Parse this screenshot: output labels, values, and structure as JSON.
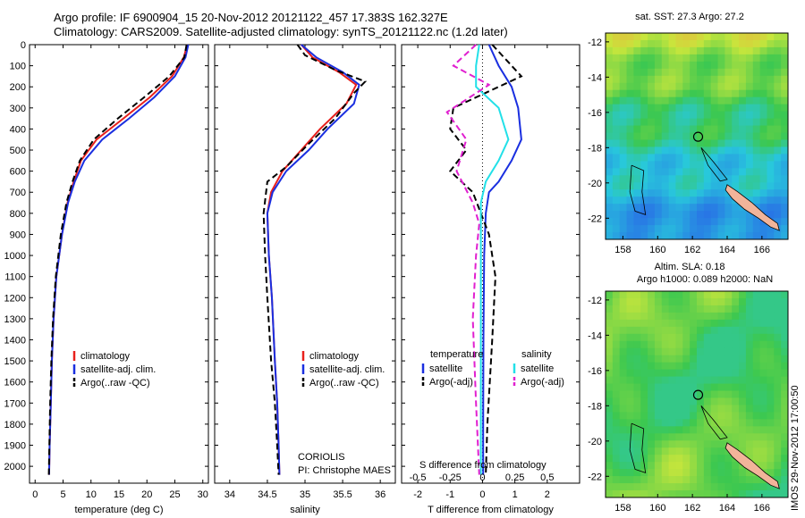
{
  "title_line1": "Argo profile: IF 6900904_15 20-Nov-2012 20121122_457 17.383S 162.327E",
  "title_line2": "Climatology: CARS2009. Satellite-adjusted climatology: synTS_20121122.nc (1.2d later)",
  "colors": {
    "red": "#e8201c",
    "blue": "#1a2fe0",
    "black": "#000000",
    "magenta": "#e020d0",
    "cyan": "#22e0e8"
  },
  "chart_data": [
    {
      "type": "line",
      "panel": "temperature",
      "xlabel": "temperature (deg C)",
      "ylabel": "",
      "xlim": [
        -1,
        31
      ],
      "ylim": [
        2080,
        0
      ],
      "xticks": [
        0,
        5,
        10,
        15,
        20,
        25,
        30
      ],
      "yticks": [
        0,
        100,
        200,
        300,
        400,
        500,
        600,
        700,
        800,
        900,
        1000,
        1100,
        1200,
        1300,
        1400,
        1500,
        1600,
        1700,
        1800,
        1900,
        2000
      ],
      "legend": {
        "position": "bottom-center",
        "entries": [
          "climatology",
          "satellite-adj. clim.",
          "Argo(..raw -QC)"
        ]
      },
      "series": [
        {
          "name": "climatology",
          "style": "solid",
          "color": "red",
          "x": [
            27.2,
            26.6,
            24.5,
            20.5,
            15.8,
            11.0,
            8.2,
            6.9,
            5.8,
            4.8,
            3.8,
            3.3,
            3.0,
            2.8,
            2.6,
            2.5
          ],
          "y": [
            0,
            60,
            150,
            250,
            350,
            450,
            550,
            650,
            750,
            900,
            1100,
            1300,
            1500,
            1700,
            1900,
            2040
          ]
        },
        {
          "name": "satellite-adj. clim.",
          "style": "solid",
          "color": "blue",
          "x": [
            27.4,
            26.9,
            25.0,
            21.3,
            16.8,
            12.0,
            8.8,
            7.1,
            5.9,
            4.8,
            3.8,
            3.3,
            3.0,
            2.8,
            2.6,
            2.5
          ],
          "y": [
            0,
            60,
            150,
            250,
            350,
            450,
            550,
            650,
            750,
            900,
            1100,
            1300,
            1500,
            1700,
            1900,
            2040
          ]
        },
        {
          "name": "Argo(..raw -QC)",
          "style": "dashed",
          "color": "black",
          "x": [
            27.1,
            26.7,
            24.0,
            19.5,
            14.8,
            10.5,
            8.0,
            6.7,
            5.6,
            4.6,
            3.7,
            3.2,
            2.9,
            2.7,
            2.55,
            2.45
          ],
          "y": [
            0,
            60,
            150,
            250,
            350,
            450,
            550,
            650,
            750,
            900,
            1100,
            1300,
            1500,
            1700,
            1900,
            2040
          ]
        }
      ]
    },
    {
      "type": "line",
      "panel": "salinity",
      "xlabel": "salinity",
      "xlim": [
        33.8,
        36.2
      ],
      "ylim": [
        2080,
        0
      ],
      "xticks": [
        34,
        34.5,
        35,
        35.5,
        36
      ],
      "xticklabels": [
        "34",
        "34.5",
        "35",
        "35.5",
        "36"
      ],
      "legend": {
        "position": "bottom-center",
        "entries": [
          "climatology",
          "satellite-adj. clim.",
          "Argo(..raw -QC)"
        ]
      },
      "annotation": [
        "CORIOLIS",
        "PI: Christophe MAES"
      ],
      "series": [
        {
          "name": "climatology",
          "style": "solid",
          "color": "red",
          "x": [
            34.95,
            35.1,
            35.45,
            35.68,
            35.55,
            35.2,
            34.95,
            34.7,
            34.55,
            34.5,
            34.52,
            34.56,
            34.6,
            34.63,
            34.65,
            34.66
          ],
          "y": [
            0,
            60,
            130,
            190,
            280,
            400,
            500,
            600,
            700,
            800,
            1000,
            1200,
            1500,
            1700,
            1900,
            2040
          ]
        },
        {
          "name": "satellite-adj. clim.",
          "style": "solid",
          "color": "blue",
          "x": [
            34.95,
            35.15,
            35.5,
            35.72,
            35.65,
            35.3,
            35.05,
            34.75,
            34.57,
            34.5,
            34.52,
            34.56,
            34.6,
            34.63,
            34.65,
            34.66
          ],
          "y": [
            0,
            60,
            130,
            190,
            280,
            400,
            500,
            600,
            700,
            800,
            1000,
            1200,
            1500,
            1700,
            1900,
            2040
          ]
        },
        {
          "name": "Argo(..raw -QC)",
          "style": "dashed",
          "color": "black",
          "x": [
            34.9,
            35.0,
            35.4,
            35.8,
            35.65,
            35.4,
            35.05,
            34.75,
            34.5,
            34.45,
            34.47,
            34.5,
            34.55,
            34.6,
            34.63,
            34.65
          ],
          "y": [
            0,
            50,
            120,
            175,
            230,
            350,
            470,
            580,
            650,
            800,
            1000,
            1200,
            1500,
            1700,
            1900,
            2040
          ]
        }
      ]
    },
    {
      "type": "line",
      "panel": "difference",
      "xlabel": "T difference from climatology",
      "xlabel2": "S difference from climatology",
      "xlim": [
        -2.5,
        3
      ],
      "ylim": [
        2080,
        0
      ],
      "xticks": [
        -2,
        -1,
        0,
        1,
        2
      ],
      "sxticks": [
        -0.5,
        -0.25,
        0,
        0.25,
        0.5
      ],
      "sxticklabels": [
        "-0.5",
        "-0.25",
        "0",
        "0.25",
        "0.5"
      ],
      "legend_temperature": {
        "title": "temperature",
        "entries": [
          "satellite",
          "Argo(-adj)"
        ]
      },
      "legend_salinity": {
        "title": "salinity",
        "entries": [
          "satellite",
          "Argo(-adj)"
        ]
      },
      "series": [
        {
          "name": "satellite",
          "group": "temperature",
          "style": "solid",
          "color": "blue",
          "x": [
            0.2,
            0.5,
            0.9,
            1.1,
            1.2,
            0.9,
            0.5,
            0.2,
            0.1,
            0.05,
            0.03,
            0.02,
            0.02
          ],
          "y": [
            0,
            100,
            200,
            300,
            450,
            550,
            650,
            700,
            800,
            1000,
            1400,
            1800,
            2040
          ]
        },
        {
          "name": "Argo(-adj)",
          "group": "temperature",
          "style": "dashed",
          "color": "black",
          "x": [
            0.3,
            1.2,
            0.5,
            -0.9,
            -1.0,
            -0.5,
            -1.0,
            -0.3,
            0.2,
            0.4,
            0.3,
            0.15,
            0.1
          ],
          "y": [
            0,
            150,
            200,
            300,
            400,
            500,
            600,
            700,
            900,
            1100,
            1400,
            1800,
            2040
          ]
        },
        {
          "name": "satellite",
          "group": "salinity",
          "style": "solid",
          "color": "cyan",
          "x": [
            -0.1,
            -0.2,
            -0.2,
            0.5,
            0.8,
            0.5,
            0.1,
            -0.05,
            -0.05,
            -0.05,
            -0.05,
            -0.05
          ],
          "y": [
            0,
            100,
            200,
            300,
            450,
            550,
            650,
            750,
            900,
            1200,
            1600,
            2040
          ]
        },
        {
          "name": "Argo(-adj)",
          "group": "salinity",
          "style": "dashed",
          "color": "magenta",
          "x": [
            -0.2,
            -0.9,
            0.2,
            -1.1,
            -0.5,
            -0.8,
            -0.3,
            -0.1,
            -0.2,
            -0.3,
            -0.2,
            -0.1
          ],
          "y": [
            0,
            100,
            190,
            320,
            450,
            600,
            750,
            850,
            1000,
            1300,
            1700,
            2040
          ]
        }
      ]
    },
    {
      "type": "heatmap",
      "panel": "sst_map",
      "title": "sat. SST: 27.3  Argo: 27.2",
      "xticks": [
        158,
        160,
        162,
        164,
        166
      ],
      "yticks": [
        -12,
        -14,
        -16,
        -18,
        -20,
        -22
      ],
      "xlim": [
        157,
        167.5
      ],
      "ylim": [
        -23.2,
        -11.5
      ],
      "marker": {
        "lon": 162.327,
        "lat": -17.383
      }
    },
    {
      "type": "heatmap",
      "panel": "sla_map",
      "title_line1": "Altim. SLA: 0.18",
      "title_line2": "Argo h1000: 0.089  h2000: NaN",
      "xticks": [
        158,
        160,
        162,
        164,
        166
      ],
      "yticks": [
        -12,
        -14,
        -16,
        -18,
        -20,
        -22
      ],
      "xlim": [
        157,
        167.5
      ],
      "ylim": [
        -23.2,
        -11.5
      ],
      "marker": {
        "lon": 162.327,
        "lat": -17.383
      }
    }
  ],
  "watermark": "IMOS 29-Nov-2012 17:00:50"
}
